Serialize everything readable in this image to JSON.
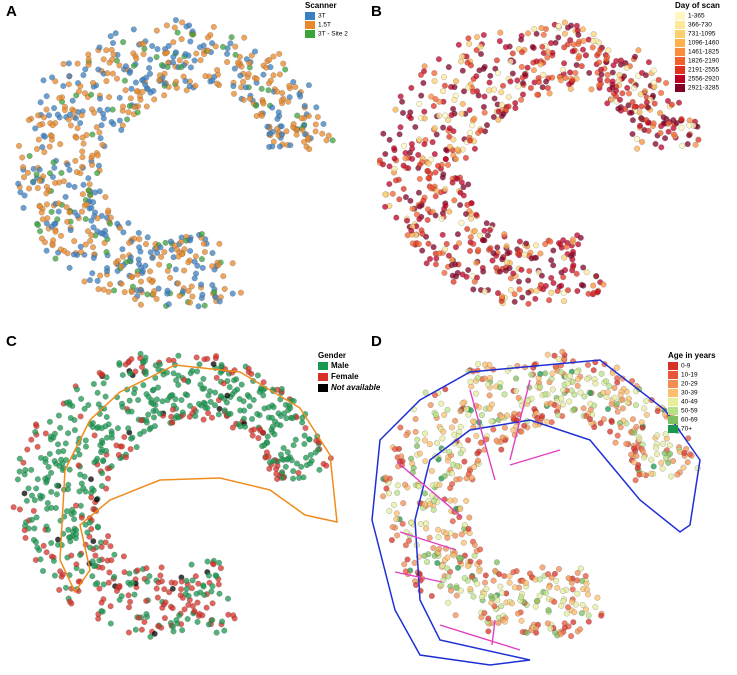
{
  "panels": [
    {
      "label": "A",
      "legend_title": "Scanner",
      "legend": [
        {
          "label": "3T",
          "color": "#3a7fc1"
        },
        {
          "label": "1.5T",
          "color": "#e8882a"
        },
        {
          "label": "3T - Site 2",
          "color": "#3aa33a"
        }
      ]
    },
    {
      "label": "B",
      "legend_title": "Day of scan",
      "legend": [
        {
          "label": "1-365",
          "color": "#fff7c0"
        },
        {
          "label": "366-730",
          "color": "#fee89a"
        },
        {
          "label": "731-1095",
          "color": "#fdd070"
        },
        {
          "label": "1096-1460",
          "color": "#fdb04c"
        },
        {
          "label": "1461-1825",
          "color": "#fc8d3c"
        },
        {
          "label": "1826-2190",
          "color": "#f4602c"
        },
        {
          "label": "2191-2555",
          "color": "#e0301e"
        },
        {
          "label": "2556-2920",
          "color": "#bd0026"
        },
        {
          "label": "2921-3285",
          "color": "#800026"
        }
      ]
    },
    {
      "label": "C",
      "legend_title": "Gender",
      "legend": [
        {
          "label": "Male",
          "color": "#1a9850"
        },
        {
          "label": "Female",
          "color": "#d73027"
        },
        {
          "label": "Not available",
          "color": "#000000"
        }
      ]
    },
    {
      "label": "D",
      "legend_title": "Age in years",
      "legend": [
        {
          "label": "0-9",
          "color": "#d73027"
        },
        {
          "label": "10-19",
          "color": "#e8553a"
        },
        {
          "label": "20-29",
          "color": "#f48d52"
        },
        {
          "label": "30-39",
          "color": "#fdbf6f"
        },
        {
          "label": "40-49",
          "color": "#e6ee9c"
        },
        {
          "label": "50-59",
          "color": "#b8e186"
        },
        {
          "label": "60-69",
          "color": "#7fbf5f"
        },
        {
          "label": "70+",
          "color": "#1a9850"
        }
      ]
    }
  ]
}
